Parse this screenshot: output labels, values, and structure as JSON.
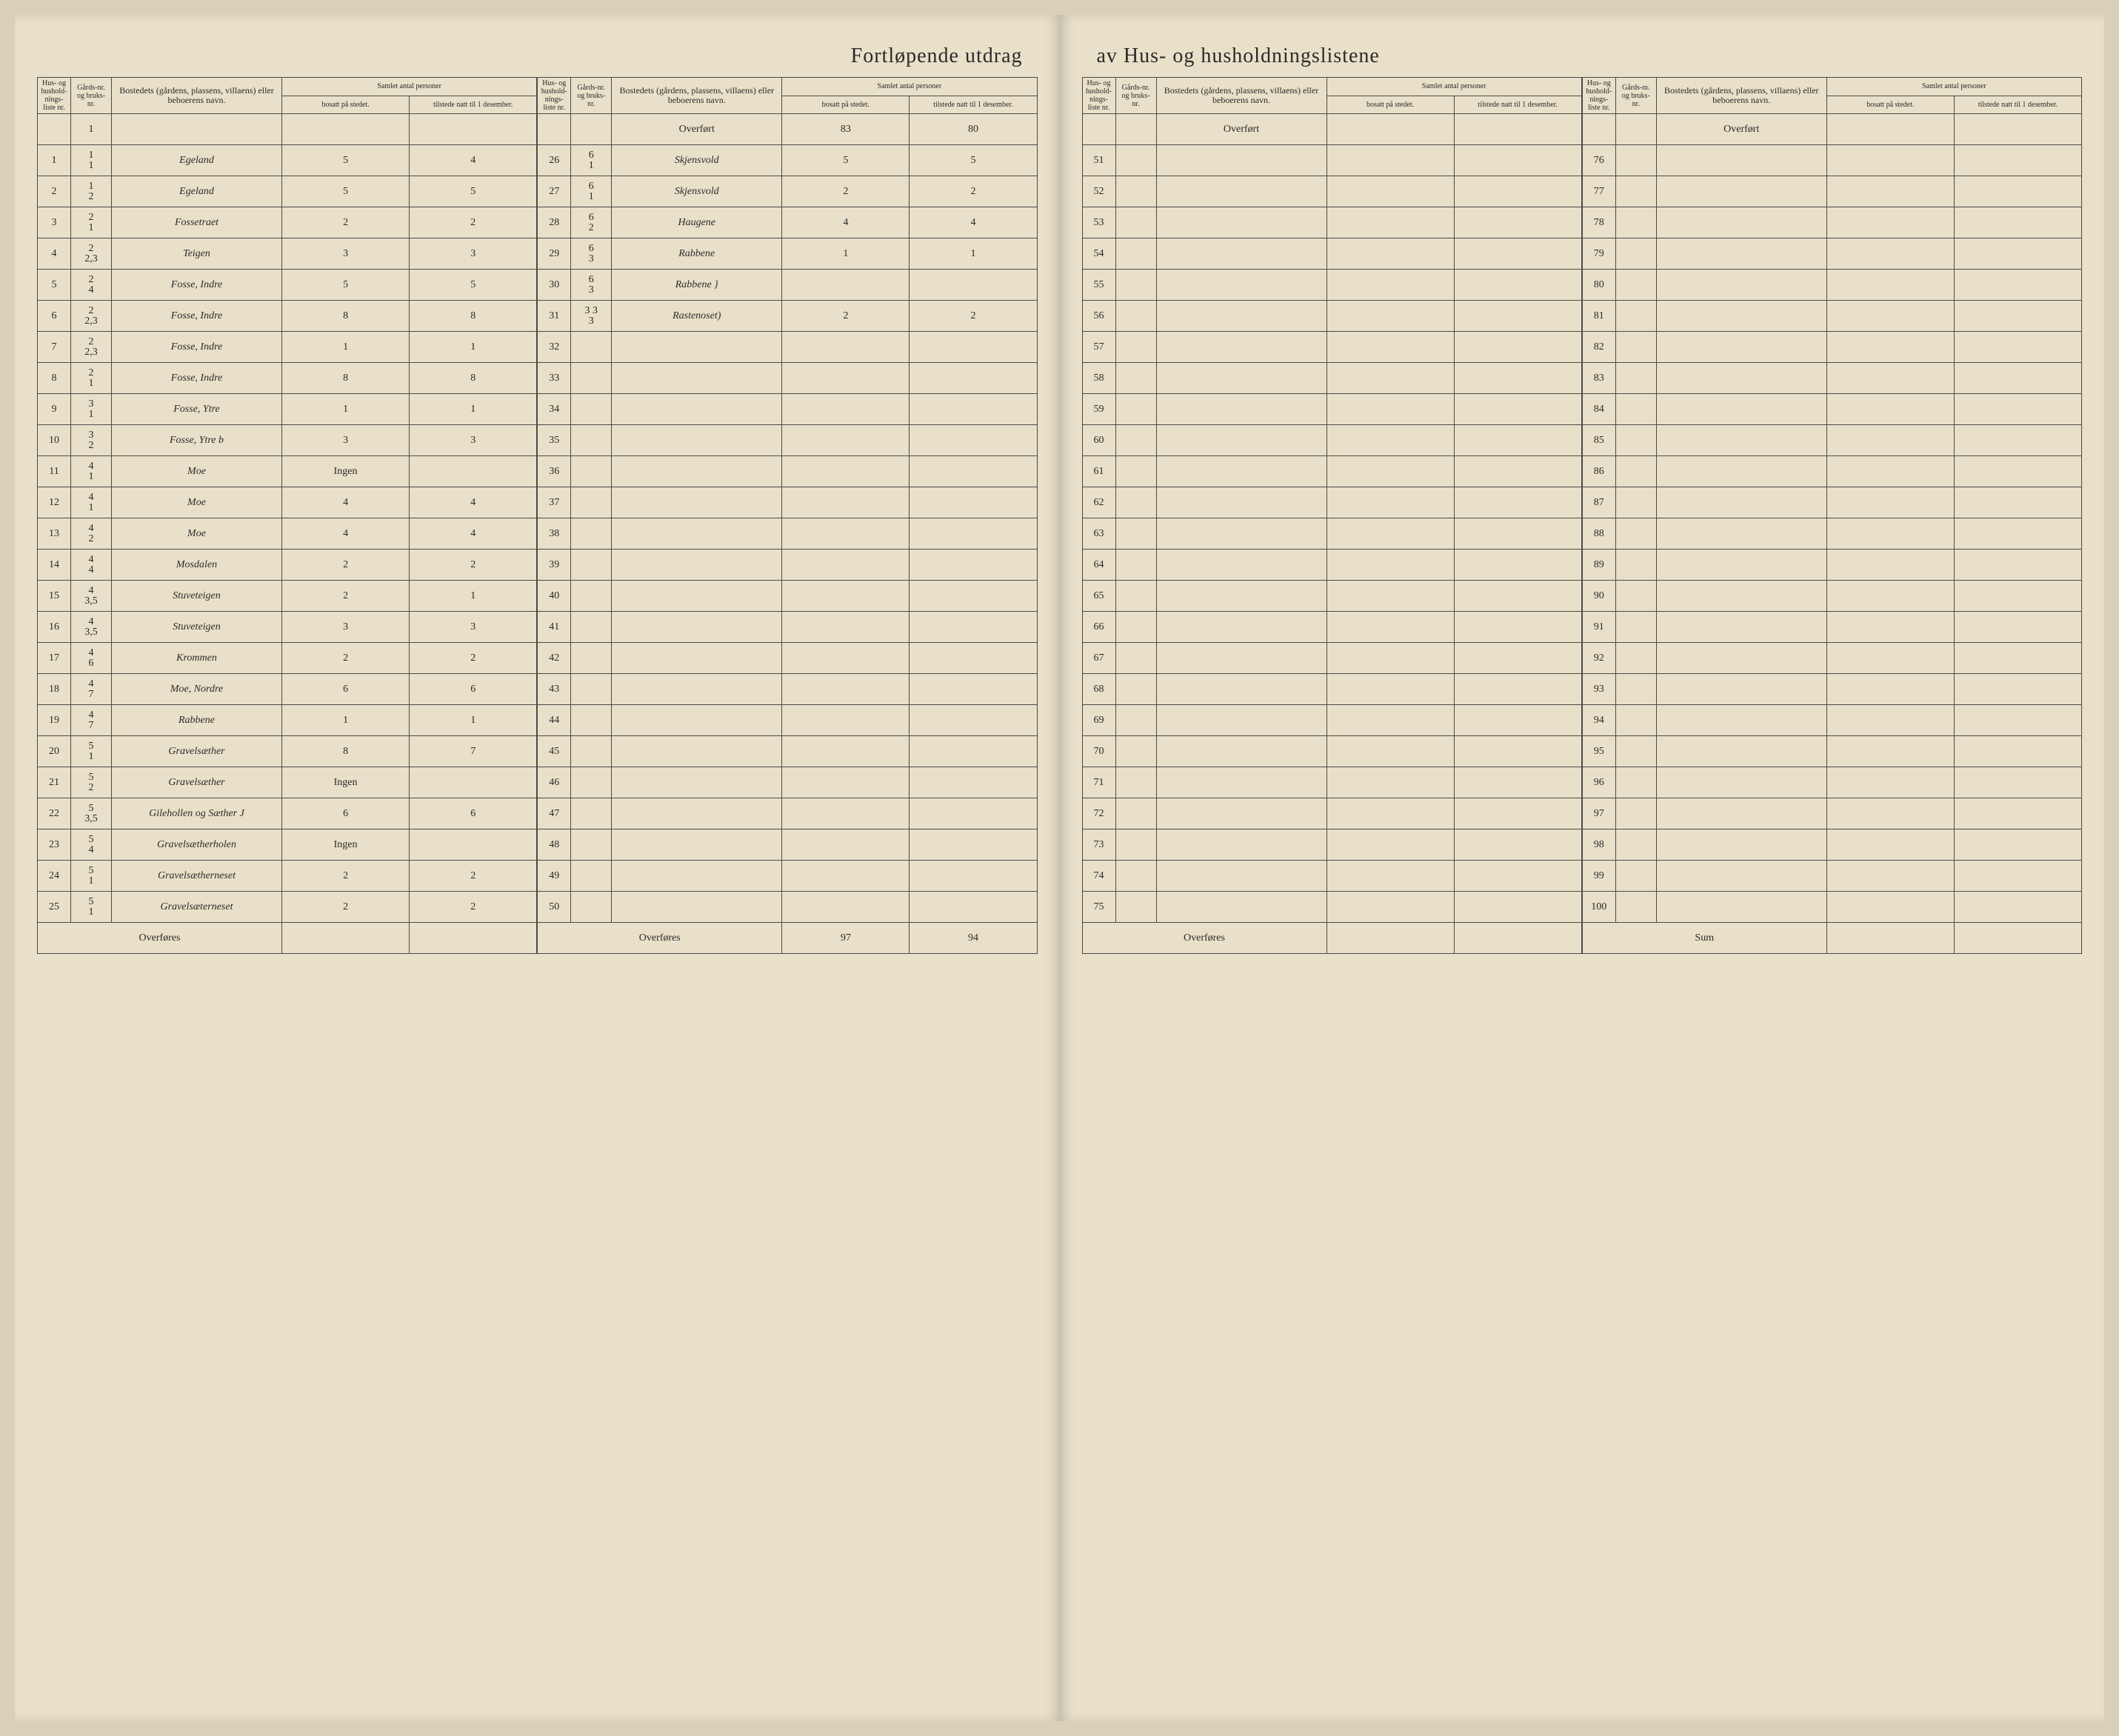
{
  "title_left": "Fortløpende utdrag",
  "title_right": "av Hus- og husholdningslistene",
  "headers": {
    "liste": "Hus- og hushold-nings-liste nr.",
    "gards": "Gårds-nr. og bruks-nr.",
    "bosted": "Bostedets (gårdens, plassens, villaens) eller beboerens navn.",
    "samlet": "Samlet antal personer",
    "bosatt": "bosatt på stedet.",
    "tilstede": "tilstede natt til 1 desember."
  },
  "overfort": "Overført",
  "overfores": "Overføres",
  "sum": "Sum",
  "overfort_bosatt": "83",
  "overfort_tilstede": "80",
  "overfores_bosatt": "97",
  "overfores_tilstede": "94",
  "block1": [
    {
      "nr": "1",
      "gards": "1",
      "gards2": "1",
      "name": "Egeland",
      "bosatt": "5",
      "tilstede": "4"
    },
    {
      "nr": "2",
      "gards": "1",
      "gards2": "2",
      "name": "Egeland",
      "bosatt": "5",
      "tilstede": "5"
    },
    {
      "nr": "3",
      "gards": "2",
      "gards2": "1",
      "name": "Fossetraet",
      "bosatt": "2",
      "tilstede": "2"
    },
    {
      "nr": "4",
      "gards": "2",
      "gards2": "2,3",
      "name": "Teigen",
      "bosatt": "3",
      "tilstede": "3"
    },
    {
      "nr": "5",
      "gards": "2",
      "gards2": "4",
      "name": "Fosse, Indre",
      "bosatt": "5",
      "tilstede": "5"
    },
    {
      "nr": "6",
      "gards": "2",
      "gards2": "2,3",
      "name": "Fosse, Indre",
      "bosatt": "8",
      "tilstede": "8"
    },
    {
      "nr": "7",
      "gards": "2",
      "gards2": "2,3",
      "name": "Fosse, Indre",
      "bosatt": "1",
      "tilstede": "1"
    },
    {
      "nr": "8",
      "gards": "2",
      "gards2": "1",
      "name": "Fosse, Indre",
      "bosatt": "8",
      "tilstede": "8"
    },
    {
      "nr": "9",
      "gards": "3",
      "gards2": "1",
      "name": "Fosse, Ytre",
      "bosatt": "1",
      "tilstede": "1"
    },
    {
      "nr": "10",
      "gards": "3",
      "gards2": "2",
      "name": "Fosse, Ytre b",
      "bosatt": "3",
      "tilstede": "3"
    },
    {
      "nr": "11",
      "gards": "4",
      "gards2": "1",
      "name": "Moe",
      "bosatt": "Ingen",
      "tilstede": ""
    },
    {
      "nr": "12",
      "gards": "4",
      "gards2": "1",
      "name": "Moe",
      "bosatt": "4",
      "tilstede": "4"
    },
    {
      "nr": "13",
      "gards": "4",
      "gards2": "2",
      "name": "Moe",
      "bosatt": "4",
      "tilstede": "4"
    },
    {
      "nr": "14",
      "gards": "4",
      "gards2": "4",
      "name": "Mosdalen",
      "bosatt": "2",
      "tilstede": "2"
    },
    {
      "nr": "15",
      "gards": "4",
      "gards2": "3,5",
      "name": "Stuveteigen",
      "bosatt": "2",
      "tilstede": "1"
    },
    {
      "nr": "16",
      "gards": "4",
      "gards2": "3,5",
      "name": "Stuveteigen",
      "bosatt": "3",
      "tilstede": "3"
    },
    {
      "nr": "17",
      "gards": "4",
      "gards2": "6",
      "name": "Krommen",
      "bosatt": "2",
      "tilstede": "2"
    },
    {
      "nr": "18",
      "gards": "4",
      "gards2": "7",
      "name": "Moe, Nordre",
      "bosatt": "6",
      "tilstede": "6"
    },
    {
      "nr": "19",
      "gards": "4",
      "gards2": "7",
      "name": "Rabbene",
      "bosatt": "1",
      "tilstede": "1"
    },
    {
      "nr": "20",
      "gards": "5",
      "gards2": "1",
      "name": "Gravelsæther",
      "bosatt": "8",
      "tilstede": "7"
    },
    {
      "nr": "21",
      "gards": "5",
      "gards2": "2",
      "name": "Gravelsæther",
      "bosatt": "Ingen",
      "tilstede": ""
    },
    {
      "nr": "22",
      "gards": "5",
      "gards2": "3,5",
      "name": "Gilehollen og Sæther J",
      "bosatt": "6",
      "tilstede": "6"
    },
    {
      "nr": "23",
      "gards": "5",
      "gards2": "4",
      "name": "Gravelsætherholen",
      "bosatt": "Ingen",
      "tilstede": ""
    },
    {
      "nr": "24",
      "gards": "5",
      "gards2": "1",
      "name": "Gravelsætherneset",
      "bosatt": "2",
      "tilstede": "2"
    },
    {
      "nr": "25",
      "gards": "5",
      "gards2": "1",
      "name": "Gravelsæterneset",
      "bosatt": "2",
      "tilstede": "2"
    }
  ],
  "block2": [
    {
      "nr": "26",
      "gards": "6",
      "gards2": "1",
      "name": "Skjensvold",
      "bosatt": "5",
      "tilstede": "5"
    },
    {
      "nr": "27",
      "gards": "6",
      "gards2": "1",
      "name": "Skjensvold",
      "bosatt": "2",
      "tilstede": "2"
    },
    {
      "nr": "28",
      "gards": "6",
      "gards2": "2",
      "name": "Haugene",
      "bosatt": "4",
      "tilstede": "4"
    },
    {
      "nr": "29",
      "gards": "6",
      "gards2": "3",
      "name": "Rabbene",
      "bosatt": "1",
      "tilstede": "1"
    },
    {
      "nr": "30",
      "gards": "6",
      "gards2": "3",
      "name": "Rabbene }",
      "bosatt": "",
      "tilstede": ""
    },
    {
      "nr": "31",
      "gards": "3 3",
      "gards2": "3",
      "name": "Rastenoset)",
      "bosatt": "2",
      "tilstede": "2"
    },
    {
      "nr": "32",
      "gards": "",
      "gards2": "",
      "name": "",
      "bosatt": "",
      "tilstede": ""
    },
    {
      "nr": "33",
      "gards": "",
      "gards2": "",
      "name": "",
      "bosatt": "",
      "tilstede": ""
    },
    {
      "nr": "34",
      "gards": "",
      "gards2": "",
      "name": "",
      "bosatt": "",
      "tilstede": ""
    },
    {
      "nr": "35",
      "gards": "",
      "gards2": "",
      "name": "",
      "bosatt": "",
      "tilstede": ""
    },
    {
      "nr": "36",
      "gards": "",
      "gards2": "",
      "name": "",
      "bosatt": "",
      "tilstede": ""
    },
    {
      "nr": "37",
      "gards": "",
      "gards2": "",
      "name": "",
      "bosatt": "",
      "tilstede": ""
    },
    {
      "nr": "38",
      "gards": "",
      "gards2": "",
      "name": "",
      "bosatt": "",
      "tilstede": ""
    },
    {
      "nr": "39",
      "gards": "",
      "gards2": "",
      "name": "",
      "bosatt": "",
      "tilstede": ""
    },
    {
      "nr": "40",
      "gards": "",
      "gards2": "",
      "name": "",
      "bosatt": "",
      "tilstede": ""
    },
    {
      "nr": "41",
      "gards": "",
      "gards2": "",
      "name": "",
      "bosatt": "",
      "tilstede": ""
    },
    {
      "nr": "42",
      "gards": "",
      "gards2": "",
      "name": "",
      "bosatt": "",
      "tilstede": ""
    },
    {
      "nr": "43",
      "gards": "",
      "gards2": "",
      "name": "",
      "bosatt": "",
      "tilstede": ""
    },
    {
      "nr": "44",
      "gards": "",
      "gards2": "",
      "name": "",
      "bosatt": "",
      "tilstede": ""
    },
    {
      "nr": "45",
      "gards": "",
      "gards2": "",
      "name": "",
      "bosatt": "",
      "tilstede": ""
    },
    {
      "nr": "46",
      "gards": "",
      "gards2": "",
      "name": "",
      "bosatt": "",
      "tilstede": ""
    },
    {
      "nr": "47",
      "gards": "",
      "gards2": "",
      "name": "",
      "bosatt": "",
      "tilstede": ""
    },
    {
      "nr": "48",
      "gards": "",
      "gards2": "",
      "name": "",
      "bosatt": "",
      "tilstede": ""
    },
    {
      "nr": "49",
      "gards": "",
      "gards2": "",
      "name": "",
      "bosatt": "",
      "tilstede": ""
    },
    {
      "nr": "50",
      "gards": "",
      "gards2": "",
      "name": "",
      "bosatt": "",
      "tilstede": ""
    }
  ],
  "block3_start": 51,
  "block3_end": 75,
  "block4_start": 76,
  "block4_end": 100
}
